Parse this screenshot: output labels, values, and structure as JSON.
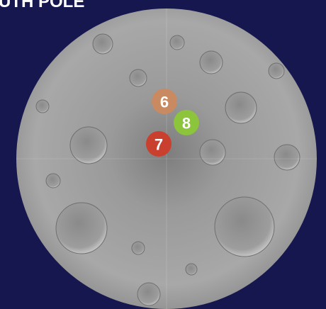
{
  "header": {
    "title": "UTH POLE"
  },
  "markers": [
    {
      "label": "6",
      "color": "#c98a62"
    },
    {
      "label": "8",
      "color": "#8cc43c"
    },
    {
      "label": "7",
      "color": "#c9402e"
    }
  ]
}
